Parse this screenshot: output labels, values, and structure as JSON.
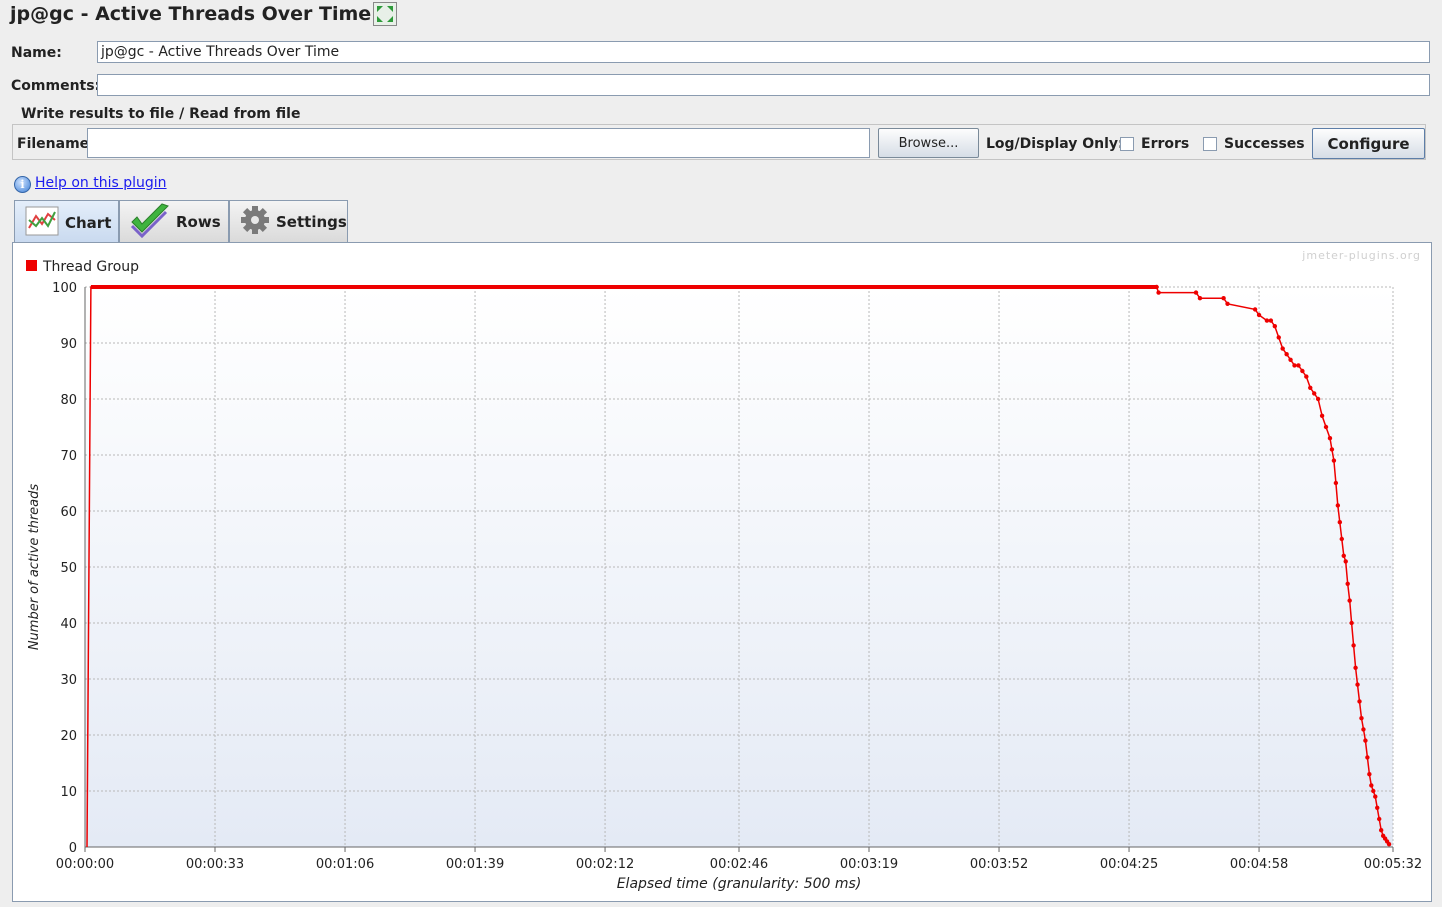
{
  "window": {
    "title": "jp@gc - Active Threads Over Time"
  },
  "form": {
    "name_label": "Name:",
    "name_value": "jp@gc - Active Threads Over Time",
    "comments_label": "Comments:",
    "comments_value": ""
  },
  "file_group": {
    "title": "Write results to file / Read from file",
    "filename_label": "Filename",
    "filename_value": "",
    "browse_label": "Browse...",
    "log_display_label": "Log/Display Only:",
    "errors_label": "Errors",
    "errors_checked": false,
    "successes_label": "Successes",
    "successes_checked": false,
    "configure_label": "Configure"
  },
  "help": {
    "link_text": "Help on this plugin"
  },
  "tabs": [
    {
      "label": "Chart",
      "icon": "chart-icon",
      "active": true
    },
    {
      "label": "Rows",
      "icon": "checkmark-icon",
      "active": false
    },
    {
      "label": "Settings",
      "icon": "gear-icon",
      "active": false
    }
  ],
  "watermark": "jmeter-plugins.org",
  "chart_data": {
    "type": "line",
    "xlabel": "Elapsed time (granularity: 500 ms)",
    "ylabel": "Number of active threads",
    "ylim": [
      0,
      100
    ],
    "yticks": [
      0,
      10,
      20,
      30,
      40,
      50,
      60,
      70,
      80,
      90,
      100
    ],
    "xlim_seconds": [
      0,
      332
    ],
    "xtick_labels": [
      "00:00:00",
      "00:00:33",
      "00:01:06",
      "00:01:39",
      "00:02:12",
      "00:02:46",
      "00:03:19",
      "00:03:52",
      "00:04:25",
      "00:04:58",
      "00:05:32"
    ],
    "xticks_seconds": [
      0,
      33,
      66,
      99,
      132,
      166,
      199,
      232,
      265,
      298,
      332
    ],
    "grid": true,
    "legend_position": "top-left",
    "series": [
      {
        "name": "Thread Group",
        "color": "#ee0000",
        "x_seconds": [
          0.5,
          1.5,
          50,
          100,
          150,
          200,
          250,
          272,
          272.5,
          282,
          283,
          289,
          290,
          297,
          298,
          300,
          301,
          302,
          303,
          304,
          305,
          306,
          307,
          308,
          309,
          310,
          311,
          312,
          313,
          314,
          315,
          316,
          316.5,
          317,
          317.5,
          318,
          318.5,
          319,
          319.5,
          320,
          320.5,
          321,
          321.5,
          322,
          322.5,
          323,
          323.5,
          324,
          324.5,
          325,
          325.5,
          326,
          326.5,
          327,
          327.5,
          328,
          328.5,
          329,
          329.5,
          330,
          330.5,
          331
        ],
        "y_values": [
          0,
          100,
          100,
          100,
          100,
          100,
          100,
          100,
          99,
          99,
          98,
          98,
          97,
          96,
          95,
          94,
          94,
          93,
          91,
          89,
          88,
          87,
          86,
          86,
          85,
          84,
          82,
          81,
          80,
          77,
          75,
          73,
          71,
          69,
          65,
          61,
          58,
          55,
          52,
          51,
          47,
          44,
          40,
          36,
          32,
          29,
          26,
          23,
          21,
          19,
          16,
          13,
          11,
          10,
          9,
          7,
          5,
          3,
          2,
          1.5,
          1,
          0.5
        ]
      }
    ]
  }
}
